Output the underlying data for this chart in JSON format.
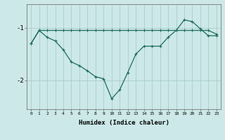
{
  "background_color": "#cce8e8",
  "grid_color": "#aacccc",
  "line_color": "#1a6b5a",
  "x_labels": [
    "0",
    "1",
    "2",
    "3",
    "4",
    "5",
    "6",
    "7",
    "8",
    "9",
    "10",
    "11",
    "12",
    "13",
    "14",
    "15",
    "16",
    "17",
    "18",
    "19",
    "20",
    "21",
    "22",
    "23"
  ],
  "xlabel": "Humidex (Indice chaleur)",
  "yticks": [
    -2,
    -1
  ],
  "ylim": [
    -2.55,
    -0.55
  ],
  "xlim": [
    -0.5,
    23.5
  ],
  "line1_y": [
    -1.3,
    -1.05,
    -1.05,
    -1.05,
    -1.05,
    -1.05,
    -1.05,
    -1.05,
    -1.05,
    -1.05,
    -1.05,
    -1.05,
    -1.05,
    -1.05,
    -1.05,
    -1.05,
    -1.05,
    -1.05,
    -1.05,
    -1.05,
    -1.05,
    -1.05,
    -1.05,
    -1.12
  ],
  "line2_y": [
    -1.3,
    -1.05,
    -1.18,
    -1.25,
    -1.42,
    -1.65,
    -1.72,
    -1.82,
    -1.93,
    -1.97,
    -2.35,
    -2.18,
    -1.85,
    -1.5,
    -1.35,
    -1.35,
    -1.35,
    -1.18,
    -1.05,
    -0.85,
    -0.88,
    -1.02,
    -1.15,
    -1.15
  ]
}
